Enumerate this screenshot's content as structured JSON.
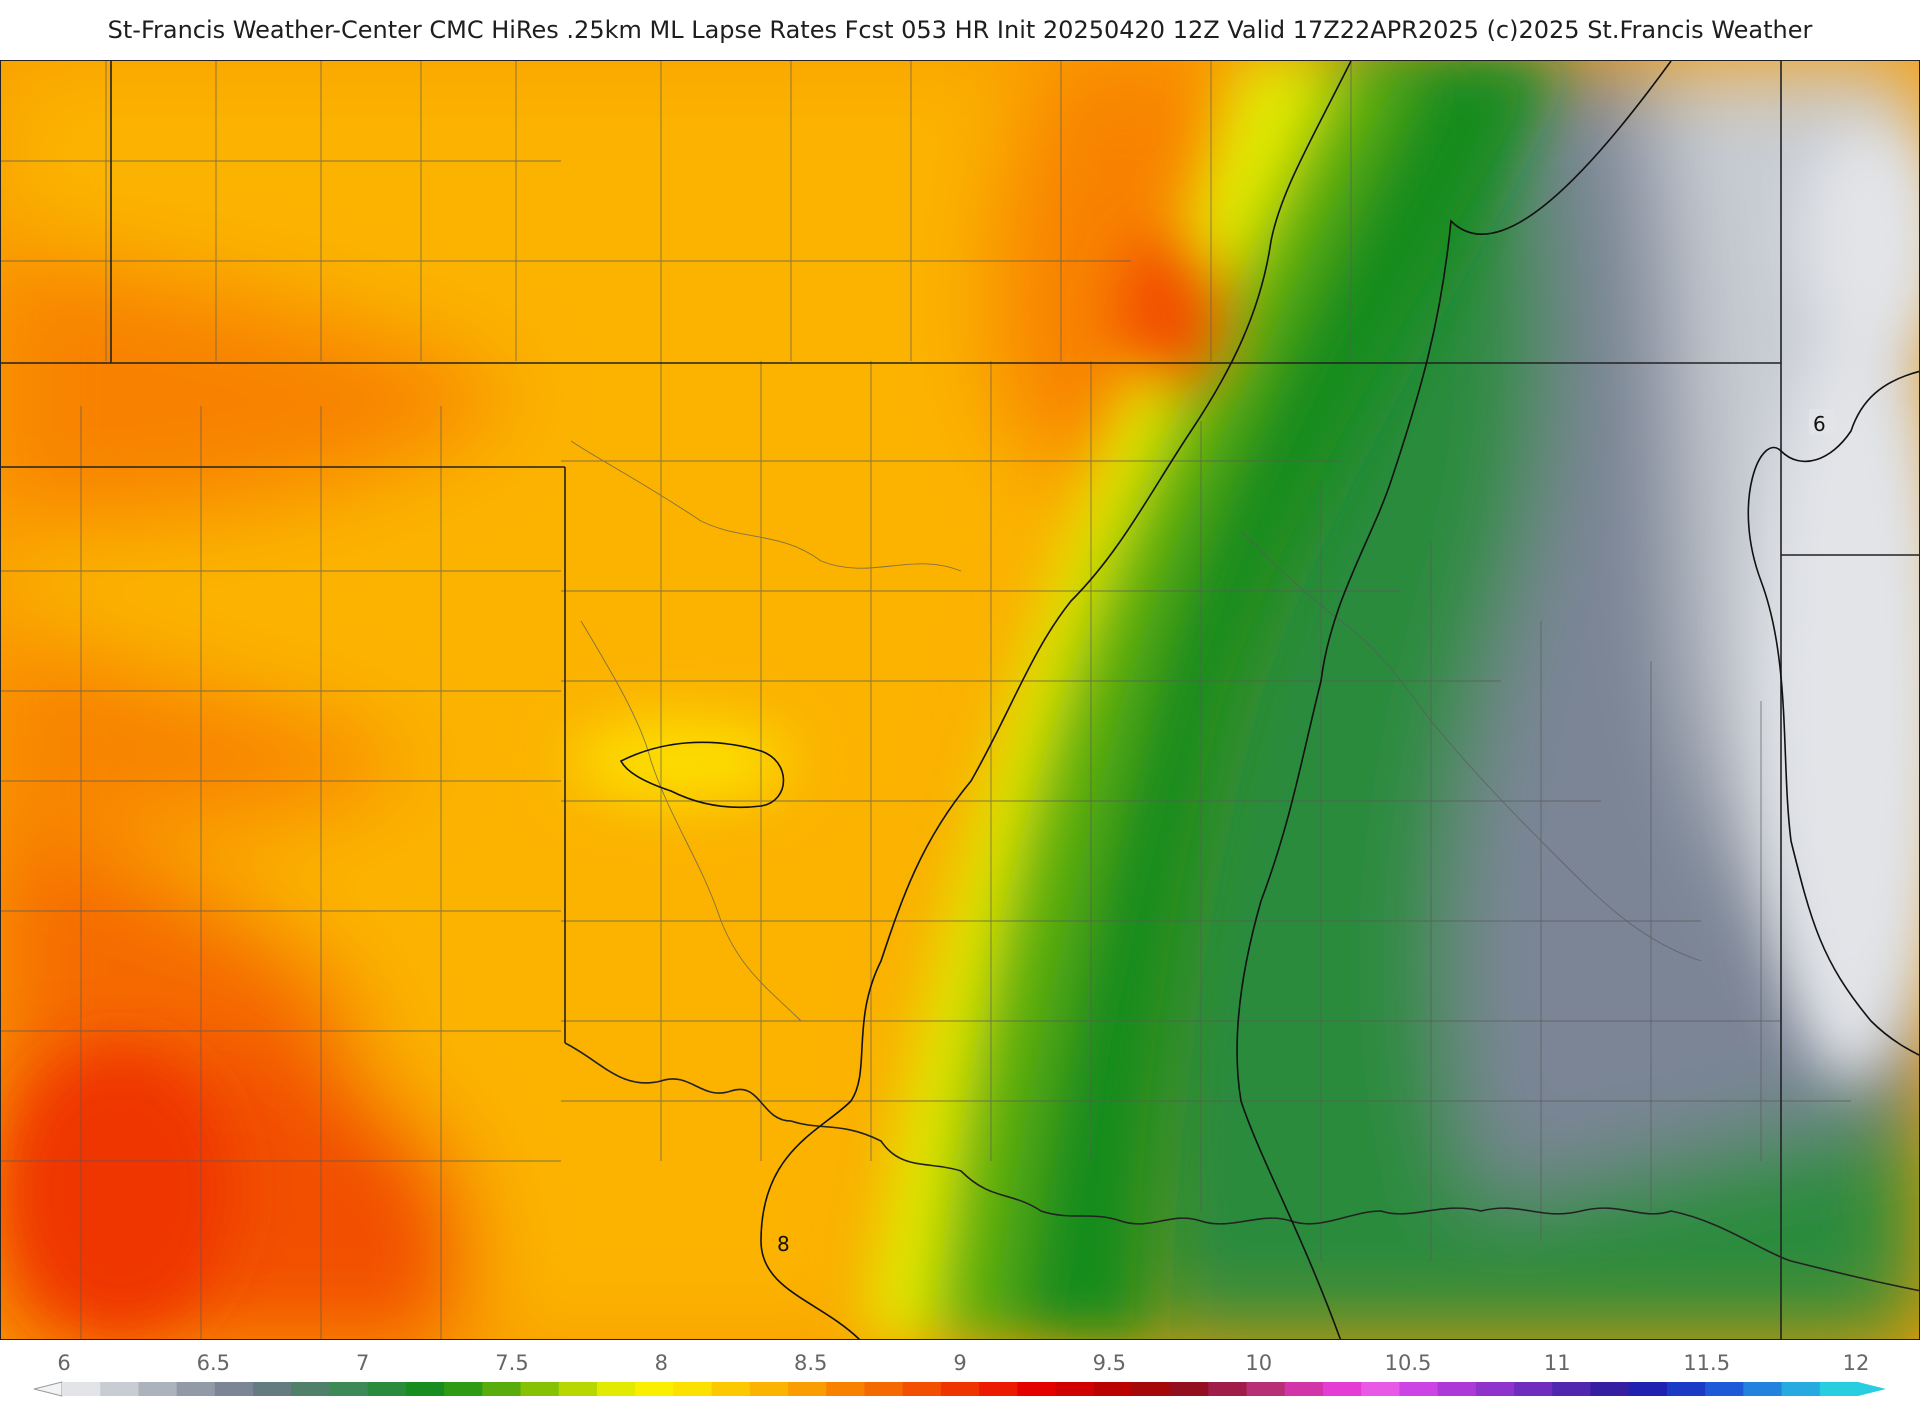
{
  "header": {
    "title": "St-Francis Weather-Center CMC HiRes .25km ML Lapse Rates  Fcst 053 HR Init 20250420 12Z  Valid 17Z22APR2025    (c)2025 St.Francis Weather"
  },
  "map": {
    "contour_labels": [
      "6",
      "8"
    ]
  },
  "legend": {
    "ticks": [
      "6",
      "6.5",
      "7",
      "7.5",
      "8",
      "8.5",
      "9",
      "9.5",
      "10",
      "10.5",
      "11",
      "11.5",
      "12"
    ],
    "colors": [
      "#e2e4e8",
      "#c8ccd3",
      "#adb3bd",
      "#939aa7",
      "#7b8596",
      "#647b80",
      "#4e806a",
      "#3e8a57",
      "#2b8b3d",
      "#178c1f",
      "#2e9b15",
      "#58ad0c",
      "#86c103",
      "#b8d600",
      "#e2ea00",
      "#fbef00",
      "#fce000",
      "#fcc900",
      "#fbb300",
      "#fa9d00",
      "#f88200",
      "#f56a00",
      "#f25000",
      "#ef3400",
      "#ec1a00",
      "#e50000",
      "#d10000",
      "#bb0000",
      "#a50808",
      "#930f20",
      "#a01d4a",
      "#b72f77",
      "#d235a8",
      "#e63cd6",
      "#e85ae6",
      "#cc44e4",
      "#ad39d9",
      "#8f33cc",
      "#6f2cbd",
      "#5026ae",
      "#351fa0",
      "#1f22b0",
      "#1b3ac6",
      "#1e5ad7",
      "#2382dd",
      "#26aadf",
      "#28cddf"
    ]
  }
}
